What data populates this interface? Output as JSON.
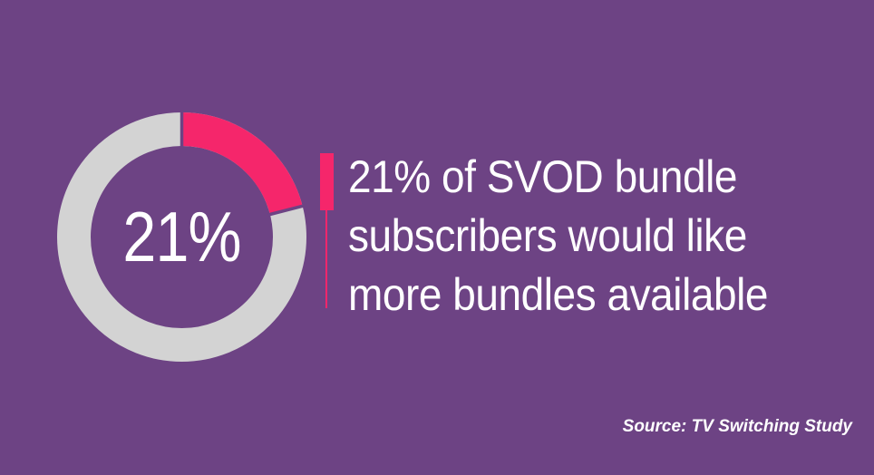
{
  "page": {
    "background_color": "#6D4384",
    "text_color": "#FFFFFF"
  },
  "chart_data": {
    "type": "pie",
    "subtype": "donut",
    "values": [
      21,
      79
    ],
    "colors": [
      "#F5266B",
      "#D3D3D3"
    ],
    "center_label": "21%",
    "start_angle_deg": 0,
    "direction": "clockwise",
    "separator_color": "#6D4384",
    "legend": "none",
    "title": ""
  },
  "headline": {
    "accent_color": "#F5266B",
    "text": "21% of SVOD bundle subscribers would like more bundles available",
    "lines": [
      "21% of SVOD bundle",
      "subscribers would like",
      "more bundles available"
    ]
  },
  "source": {
    "label": "Source: TV Switching Study"
  }
}
